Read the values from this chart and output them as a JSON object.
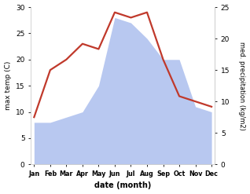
{
  "months": [
    "Jan",
    "Feb",
    "Mar",
    "Apr",
    "May",
    "Jun",
    "Jul",
    "Aug",
    "Sep",
    "Oct",
    "Nov",
    "Dec"
  ],
  "max_temp": [
    9,
    18,
    20,
    23,
    22,
    29,
    28,
    29,
    20,
    13,
    12,
    11
  ],
  "precipitation_display": [
    8,
    8,
    9,
    10,
    15,
    28,
    27,
    24,
    20,
    20,
    11,
    10
  ],
  "temp_color": "#c0392b",
  "precip_fill_color": "#b8c8f0",
  "temp_ylim": [
    0,
    30
  ],
  "precip_ylim": [
    0,
    25
  ],
  "temp_yticks": [
    0,
    5,
    10,
    15,
    20,
    25,
    30
  ],
  "precip_yticks": [
    0,
    5,
    10,
    15,
    20,
    25
  ],
  "ylabel_left": "max temp (C)",
  "ylabel_right": "med. precipitation (kg/m2)",
  "xlabel": "date (month)",
  "bg_color": "#ffffff",
  "line_width": 1.6
}
